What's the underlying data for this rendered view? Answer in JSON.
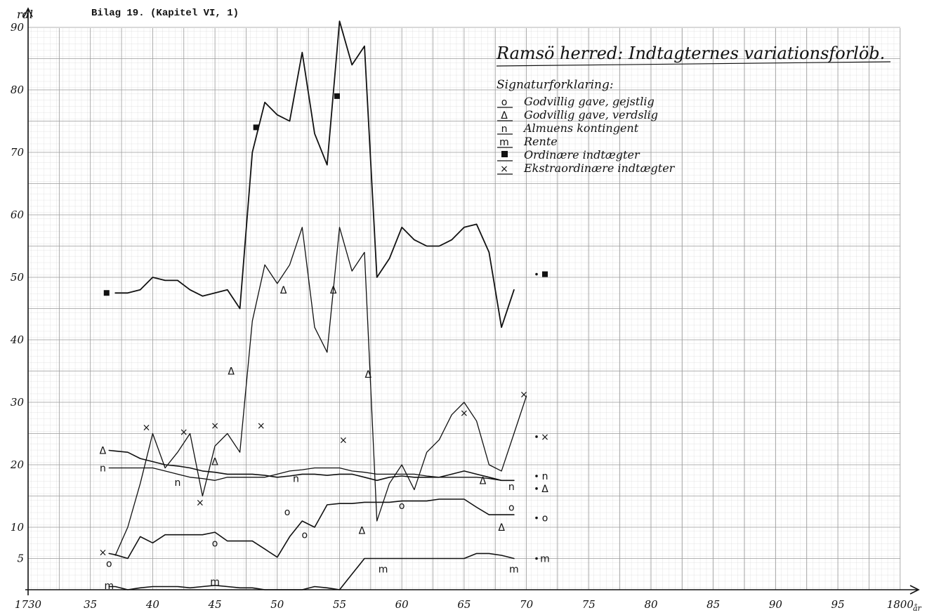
{
  "header": {
    "caption": "Bilag 19. (Kapitel VI, 1)"
  },
  "chart_data": {
    "type": "line",
    "title": "Ramsö herred: Indtagternes variationsforlöb.",
    "ylabel": "rdl",
    "xlabel": "år",
    "ylim": [
      0,
      90
    ],
    "xlim": [
      1730,
      1800
    ],
    "y_ticks": [
      {
        "v": 5,
        "label": "5"
      },
      {
        "v": 10,
        "label": "10"
      },
      {
        "v": 20,
        "label": "20"
      },
      {
        "v": 30,
        "label": "30"
      },
      {
        "v": 40,
        "label": "40"
      },
      {
        "v": 50,
        "label": "50"
      },
      {
        "v": 60,
        "label": "60"
      },
      {
        "v": 70,
        "label": "70"
      },
      {
        "v": 80,
        "label": "80"
      },
      {
        "v": 90,
        "label": "90"
      }
    ],
    "x_ticks": [
      {
        "v": 1730,
        "label": "1730"
      },
      {
        "v": 1735,
        "label": "35"
      },
      {
        "v": 1740,
        "label": "40"
      },
      {
        "v": 1745,
        "label": "45"
      },
      {
        "v": 1750,
        "label": "50"
      },
      {
        "v": 1755,
        "label": "55"
      },
      {
        "v": 1760,
        "label": "60"
      },
      {
        "v": 1765,
        "label": "65"
      },
      {
        "v": 1770,
        "label": "70"
      },
      {
        "v": 1775,
        "label": "75"
      },
      {
        "v": 1780,
        "label": "80"
      },
      {
        "v": 1785,
        "label": "85"
      },
      {
        "v": 1790,
        "label": "90"
      },
      {
        "v": 1795,
        "label": "95"
      },
      {
        "v": 1800,
        "label": "1800"
      }
    ],
    "legend_title": "Signaturforklaring:",
    "legend_position": "top-right",
    "grid": true,
    "series": [
      {
        "name": "Godvillig gave, gejstlig",
        "symbol": "o",
        "width": 1.6,
        "x": [
          1736.5,
          1737,
          1738,
          1739,
          1740,
          1741,
          1742,
          1743,
          1744,
          1745,
          1746,
          1747,
          1748,
          1749,
          1750,
          1751,
          1752,
          1753,
          1754,
          1755,
          1756,
          1757,
          1758,
          1759,
          1760,
          1761,
          1762,
          1763,
          1764,
          1765,
          1766,
          1767,
          1768,
          1769
        ],
        "y": [
          5.8,
          5.6,
          5,
          8.5,
          7.5,
          8.8,
          8.8,
          8.8,
          8.8,
          9.2,
          7.8,
          7.8,
          7.8,
          6.5,
          5.2,
          8.5,
          11,
          10,
          13.6,
          13.8,
          13.8,
          14,
          14,
          14,
          14.2,
          14.2,
          14.2,
          14.5,
          14.5,
          14.5,
          13.2,
          12,
          12,
          12
        ]
      },
      {
        "name": "Godvillig gave, verdslig",
        "symbol": "Δ",
        "width": 1.6,
        "x": [
          1736.5,
          1737,
          1738,
          1739,
          1740,
          1741,
          1742,
          1743,
          1744,
          1745,
          1746,
          1747,
          1748,
          1749,
          1750,
          1751,
          1752,
          1753,
          1754,
          1755,
          1756,
          1757,
          1758,
          1759,
          1760,
          1761,
          1762,
          1763,
          1764,
          1765,
          1766,
          1767,
          1768,
          1769
        ],
        "y": [
          22.3,
          22.2,
          22,
          21,
          20.5,
          20,
          19.8,
          19.5,
          19,
          18.8,
          18.5,
          18.5,
          18.5,
          18.3,
          18,
          18.2,
          18.5,
          18.5,
          18.3,
          18.5,
          18.5,
          18,
          17.5,
          18,
          18.2,
          18,
          18,
          18,
          18.5,
          19,
          18.5,
          18,
          17.5,
          17.5
        ]
      },
      {
        "name": "Almuens kontingent",
        "symbol": "n",
        "width": 1.3,
        "x": [
          1736.5,
          1738,
          1739,
          1740,
          1741,
          1742,
          1743,
          1744,
          1745,
          1746,
          1747,
          1748,
          1749,
          1750,
          1751,
          1752,
          1753,
          1754,
          1755,
          1756,
          1757,
          1758,
          1759,
          1760,
          1761,
          1762,
          1763,
          1764,
          1765,
          1766,
          1767,
          1768,
          1769
        ],
        "y": [
          19.5,
          19.5,
          19.5,
          19.5,
          19,
          18.5,
          18,
          17.8,
          17.5,
          18,
          18,
          18,
          18,
          18.5,
          19,
          19.2,
          19.5,
          19.5,
          19.5,
          19,
          18.8,
          18.5,
          18.5,
          18.5,
          18.5,
          18.2,
          18,
          18,
          18,
          18,
          17.8,
          17.5,
          17.5
        ]
      },
      {
        "name": "Rente",
        "symbol": "m",
        "width": 1.6,
        "x": [
          1736.5,
          1737,
          1738,
          1739,
          1740,
          1741,
          1742,
          1743,
          1744,
          1745,
          1746,
          1747,
          1748,
          1749,
          1750,
          1751,
          1752,
          1753,
          1754,
          1755,
          1756,
          1757,
          1758,
          1759,
          1760,
          1761,
          1762,
          1763,
          1764,
          1765,
          1766,
          1767,
          1768,
          1769
        ],
        "y": [
          0.5,
          0.5,
          0,
          0.3,
          0.5,
          0.5,
          0.5,
          0.3,
          0.5,
          0.7,
          0.5,
          0.3,
          0.3,
          0,
          0,
          0,
          0,
          0.5,
          0.3,
          0,
          2.5,
          5,
          5,
          5,
          5,
          5,
          5,
          5,
          5,
          5,
          5.8,
          5.8,
          5.5,
          5
        ]
      },
      {
        "name": "Ordinære indtægter",
        "symbol": "■",
        "width": 1.8,
        "x": [
          1737,
          1738,
          1739,
          1740,
          1741,
          1742,
          1743,
          1744,
          1745,
          1746,
          1747,
          1748,
          1749,
          1750,
          1751,
          1752,
          1753,
          1754,
          1755,
          1756,
          1757,
          1758,
          1759,
          1760,
          1761,
          1762,
          1763,
          1764,
          1765,
          1766,
          1767,
          1768,
          1769
        ],
        "y": [
          47.5,
          47.5,
          48,
          50,
          49.5,
          49.5,
          48,
          47,
          47.5,
          48,
          45,
          70,
          78,
          76,
          75,
          86,
          73,
          68,
          91,
          84,
          87,
          50,
          53,
          58,
          56,
          55,
          55,
          56,
          58,
          58.5,
          54,
          42,
          48
        ]
      },
      {
        "name": "Ekstraordinære indtægter",
        "symbol": "×",
        "width": 1.3,
        "x": [
          1737,
          1738,
          1739,
          1740,
          1741,
          1742,
          1743,
          1744,
          1745,
          1746,
          1747,
          1748,
          1749,
          1750,
          1751,
          1752,
          1753,
          1754,
          1755,
          1756,
          1757,
          1758,
          1759,
          1760,
          1761,
          1762,
          1763,
          1764,
          1765,
          1766,
          1767,
          1768,
          1769,
          1770
        ],
        "y": [
          5.5,
          10,
          17,
          25,
          19.5,
          22,
          25,
          15,
          23,
          25,
          22,
          43,
          52,
          49,
          52,
          58,
          42,
          38,
          58,
          51,
          54,
          11,
          17,
          20,
          16,
          22,
          24,
          28,
          30,
          27,
          20,
          19,
          25,
          31
        ]
      }
    ],
    "point_labels": [
      {
        "s": "■",
        "x": 1736.3,
        "y": 47.5
      },
      {
        "s": "■",
        "x": 1748.3,
        "y": 74
      },
      {
        "s": "■",
        "x": 1754.8,
        "y": 79
      },
      {
        "s": "Δ",
        "x": 1736,
        "y": 22.3
      },
      {
        "s": "Δ",
        "x": 1746.3,
        "y": 35
      },
      {
        "s": "Δ",
        "x": 1750.5,
        "y": 48
      },
      {
        "s": "Δ",
        "x": 1754.5,
        "y": 48
      },
      {
        "s": "Δ",
        "x": 1757.3,
        "y": 34.5
      },
      {
        "s": "Δ",
        "x": 1745,
        "y": 20.5
      },
      {
        "s": "Δ",
        "x": 1756.8,
        "y": 9.5
      },
      {
        "s": "Δ",
        "x": 1768,
        "y": 10
      },
      {
        "s": "Δ",
        "x": 1766.5,
        "y": 17.5
      },
      {
        "s": "n",
        "x": 1736,
        "y": 19.5
      },
      {
        "s": "n",
        "x": 1742,
        "y": 17.2
      },
      {
        "s": "n",
        "x": 1751.5,
        "y": 17.8
      },
      {
        "s": "n",
        "x": 1768.8,
        "y": 16.5
      },
      {
        "s": "o",
        "x": 1736.5,
        "y": 4.2
      },
      {
        "s": "o",
        "x": 1745,
        "y": 7.5
      },
      {
        "s": "o",
        "x": 1752.2,
        "y": 8.8
      },
      {
        "s": "o",
        "x": 1750.8,
        "y": 12.5
      },
      {
        "s": "o",
        "x": 1760,
        "y": 13.5
      },
      {
        "s": "o",
        "x": 1768.8,
        "y": 13.2
      },
      {
        "s": "m",
        "x": 1736.5,
        "y": 0.7
      },
      {
        "s": "m",
        "x": 1745,
        "y": 1.3
      },
      {
        "s": "m",
        "x": 1758.5,
        "y": 3.3
      },
      {
        "s": "m",
        "x": 1769,
        "y": 3.3
      },
      {
        "s": "×",
        "x": 1736,
        "y": 6
      },
      {
        "s": "×",
        "x": 1739.5,
        "y": 26
      },
      {
        "s": "×",
        "x": 1742.5,
        "y": 25.3
      },
      {
        "s": "×",
        "x": 1745,
        "y": 26.3
      },
      {
        "s": "×",
        "x": 1743.8,
        "y": 14
      },
      {
        "s": "×",
        "x": 1748.7,
        "y": 26.3
      },
      {
        "s": "×",
        "x": 1755.3,
        "y": 24
      },
      {
        "s": "×",
        "x": 1765,
        "y": 28.3
      },
      {
        "s": "×",
        "x": 1769.8,
        "y": 31.3
      }
    ],
    "right_key": [
      {
        "text": "■",
        "y": 50.5
      },
      {
        "text": "×",
        "y": 24.5
      },
      {
        "text": "n",
        "y": 18.2
      },
      {
        "text": "Δ",
        "y": 16.2
      },
      {
        "text": "o",
        "y": 11.5
      },
      {
        "text": "m",
        "y": 5
      }
    ]
  }
}
